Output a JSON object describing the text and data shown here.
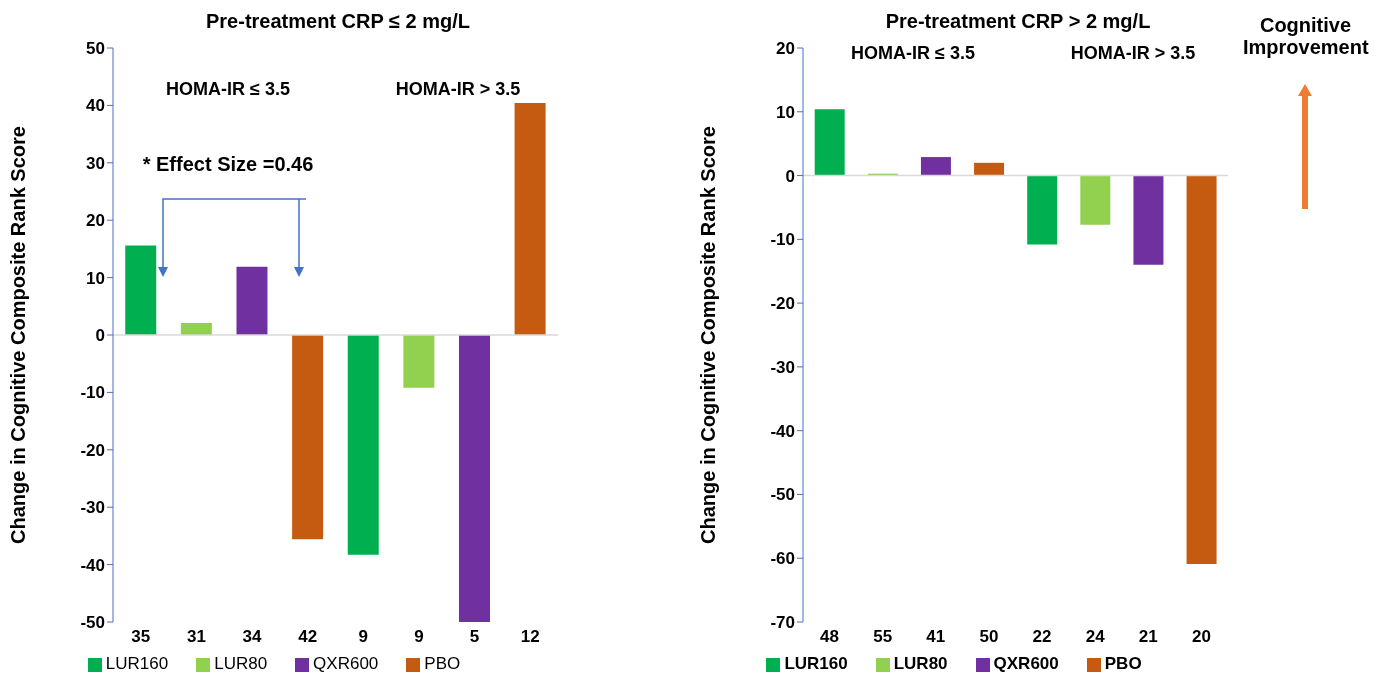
{
  "chart_data": [
    {
      "type": "bar",
      "title": "Pre-treatment CRP ≤ 2 mg/L",
      "ylabel": "Change in Cognitive Composite Rank Score",
      "categories": [
        "35",
        "31",
        "34",
        "42",
        "9",
        "9",
        "5",
        "12"
      ],
      "series": [
        {
          "name": "LUR160",
          "color": "#00b050",
          "values": [
            15.6,
            null,
            null,
            null,
            -38.3,
            null,
            null,
            null
          ]
        },
        {
          "name": "LUR80",
          "color": "#92d050",
          "values": [
            null,
            2.1,
            null,
            null,
            null,
            -9.2,
            null,
            null
          ]
        },
        {
          "name": "QXR600",
          "color": "#7030a0",
          "values": [
            null,
            null,
            11.9,
            null,
            null,
            null,
            -50,
            null
          ]
        },
        {
          "name": "PBO",
          "color": "#c55a11",
          "values": [
            null,
            null,
            null,
            -35.6,
            null,
            null,
            null,
            40.4
          ]
        }
      ],
      "ylim": [
        -50,
        50
      ],
      "yticks": [
        -50,
        -40,
        -30,
        -20,
        -10,
        0,
        10,
        20,
        30,
        40,
        50
      ],
      "grid": false,
      "legend": "bottom",
      "ref_lines": [
        {
          "axis": "y",
          "value": 0,
          "color": "#d9d9d9"
        }
      ],
      "annotations": [
        "HOMA-IR ≤ 3.5",
        "HOMA-IR > 3.5",
        "* Effect Size =0.46"
      ]
    },
    {
      "type": "bar",
      "title": "Pre-treatment CRP > 2 mg/L",
      "ylabel": "Change in Cognitive Composite Rank Score",
      "categories": [
        "48",
        "55",
        "41",
        "50",
        "22",
        "24",
        "21",
        "20"
      ],
      "series": [
        {
          "name": "LUR160",
          "color": "#00b050",
          "values": [
            10.4,
            null,
            null,
            null,
            -10.8,
            null,
            null,
            null
          ]
        },
        {
          "name": "LUR80",
          "color": "#92d050",
          "values": [
            null,
            0.3,
            null,
            null,
            null,
            -7.7,
            null,
            null
          ]
        },
        {
          "name": "QXR600",
          "color": "#7030a0",
          "values": [
            null,
            null,
            2.9,
            null,
            null,
            null,
            -14.0,
            null
          ]
        },
        {
          "name": "PBO",
          "color": "#c55a11",
          "values": [
            null,
            null,
            null,
            2.0,
            null,
            null,
            null,
            -60.9
          ]
        }
      ],
      "ylim": [
        -70,
        20
      ],
      "yticks": [
        -70,
        -60,
        -50,
        -40,
        -30,
        -20,
        -10,
        0,
        10,
        20
      ],
      "grid": false,
      "legend": "bottom",
      "ref_lines": [
        {
          "axis": "y",
          "value": 0,
          "color": "#d9d9d9"
        }
      ],
      "annotations": [
        "HOMA-IR ≤ 3.5",
        "HOMA-IR > 3.5",
        "Cognitive Improvement"
      ]
    }
  ]
}
